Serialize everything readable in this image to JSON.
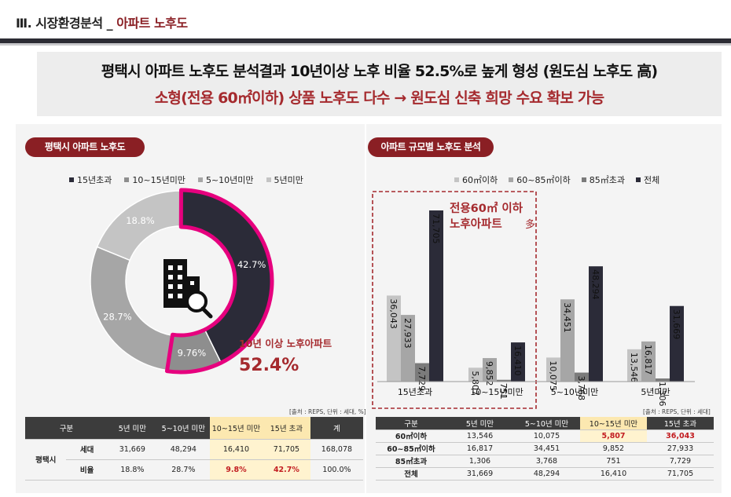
{
  "header": {
    "section": "Ⅲ. 시장환경분석",
    "sep": " _ ",
    "sub": "아파트 노후도"
  },
  "banner": {
    "line1": "평택시 아파트 노후도 분석결과 10년이상 노후 비율 52.5%로 높게 형성 (원도심 노후도 高)",
    "line2": "소형(전용 60㎡이하) 상품 노후도 다수 → 원도심 신축 희망 수요 확보 가능"
  },
  "left_title": "평택시 아파트 노후도",
  "right_title": "아파트 규모별 노후도 분석",
  "colors": {
    "dark": "#2b2b38",
    "grey": "#8e8e8e",
    "mid": "#a6a6a6",
    "light": "#c4c4c4",
    "accent": "#e6007e",
    "brand": "#8a1f24"
  },
  "chart_data": [
    {
      "type": "pie",
      "title": "평택시 아파트 노후도",
      "legend": [
        "15년초과",
        "10~15년미만",
        "5~10년미만",
        "5년미만"
      ],
      "slices": [
        {
          "name": "15년초과",
          "value": 42.7,
          "label": "42.7%",
          "color": "#2b2b38"
        },
        {
          "name": "10~15년미만",
          "value": 9.76,
          "label": "9.76%",
          "color": "#8e8e8e"
        },
        {
          "name": "5~10년미만",
          "value": 28.7,
          "label": "28.7%",
          "color": "#a6a6a6"
        },
        {
          "name": "5년미만",
          "value": 18.8,
          "label": "18.8%",
          "color": "#c4c4c4"
        }
      ],
      "center_icon": "building-search-icon",
      "annotation": {
        "text": "10년 이상 노후아파트",
        "value": "52.4%"
      }
    },
    {
      "type": "bar",
      "title": "아파트 규모별 노후도 분석",
      "categories": [
        "15년초과",
        "10~15년미만",
        "5~10년미만",
        "5년미만"
      ],
      "series": [
        {
          "name": "60㎡이하",
          "color": "#c4c4c4",
          "values": [
            36043,
            5807,
            10075,
            13546
          ],
          "labels": [
            "36,043",
            "5,807",
            "10,075",
            "13,546"
          ]
        },
        {
          "name": "60~85㎡이하",
          "color": "#a6a6a6",
          "values": [
            27933,
            9852,
            34451,
            16817
          ],
          "labels": [
            "27,933",
            "9,852",
            "34,451",
            "16,817"
          ]
        },
        {
          "name": "85㎡초과",
          "color": "#7b7b7b",
          "values": [
            7729,
            751,
            3768,
            1306
          ],
          "labels": [
            "7,729",
            "751",
            "3,768",
            "1,306"
          ]
        },
        {
          "name": "전체",
          "color": "#2b2b38",
          "values": [
            71705,
            16410,
            48294,
            31669
          ],
          "labels": [
            "71,705",
            "16,410",
            "48,294",
            "31,669"
          ]
        }
      ],
      "ylim": [
        0,
        75000
      ],
      "annotation": {
        "line1": "전용60㎡ 이하",
        "line2": "노후아파트",
        "mark": "多"
      }
    }
  ],
  "left_table": {
    "note": "[출처 : REPS, 단위 : 세대, %]",
    "headers": [
      "구분",
      "5년 미만",
      "5~10년 미만",
      "10~15년 미만",
      "15년 초과",
      "계"
    ],
    "region": "평택시",
    "rows": [
      {
        "label": "세대",
        "cells": [
          "31,669",
          "48,294",
          "16,410",
          "71,705",
          "168,078"
        ]
      },
      {
        "label": "비율",
        "cells": [
          "18.8%",
          "28.7%",
          "9.8%",
          "42.7%",
          "100.0%"
        ]
      }
    ]
  },
  "right_table": {
    "note": "[출처 : REPS, 단위 : 세대]",
    "headers": [
      "구분",
      "5년 미만",
      "5~10년 미만",
      "10~15년 미만",
      "15년 초과"
    ],
    "rows": [
      {
        "label": "60㎡이하",
        "cells": [
          "13,546",
          "10,075",
          "5,807",
          "36,043"
        ]
      },
      {
        "label": "60~85㎡이하",
        "cells": [
          "16,817",
          "34,451",
          "9,852",
          "27,933"
        ]
      },
      {
        "label": "85㎡초과",
        "cells": [
          "1,306",
          "3,768",
          "751",
          "7,729"
        ]
      },
      {
        "label": "전체",
        "cells": [
          "31,669",
          "48,294",
          "16,410",
          "71,705"
        ]
      }
    ]
  }
}
